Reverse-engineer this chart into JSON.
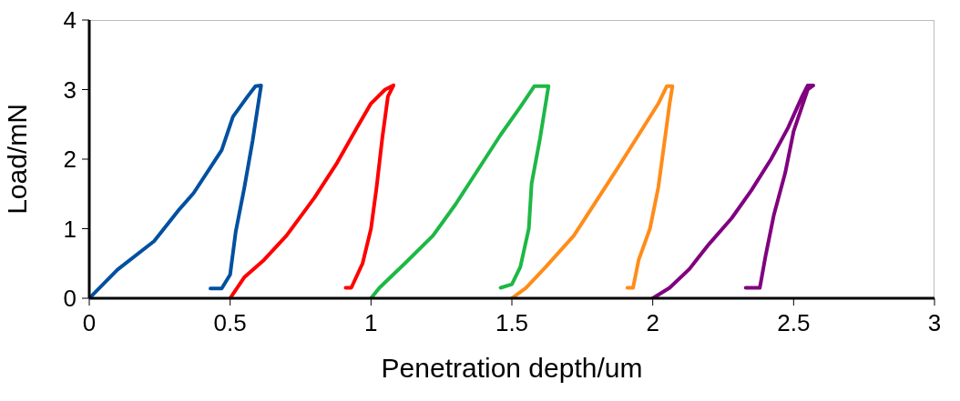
{
  "chart_data": {
    "type": "line",
    "xlabel": "Penetration depth/um",
    "ylabel": "Load/mN",
    "xlim": [
      0,
      3
    ],
    "xticks": [
      0,
      0.5,
      1,
      1.5,
      2,
      2.5,
      3
    ],
    "ylim": [
      0,
      4
    ],
    "yticks": [
      0,
      1,
      2,
      3,
      4
    ],
    "marker": "none",
    "line_style": "solid",
    "series": [
      {
        "color": "#0050a0",
        "x": [
          0,
          0.1,
          0.23,
          0.32,
          0.37,
          0.43,
          0.47,
          0.51,
          0.56,
          0.59,
          0.61,
          0.6,
          0.58,
          0.55,
          0.52,
          0.5,
          0.47,
          0.43
        ],
        "values": [
          0,
          0.41,
          0.82,
          1.28,
          1.51,
          1.88,
          2.13,
          2.61,
          2.89,
          3.05,
          3.06,
          2.8,
          2.27,
          1.58,
          0.96,
          0.34,
          0.14,
          0.14
        ]
      },
      {
        "color": "#ff0000",
        "x": [
          0.5,
          0.55,
          0.62,
          0.7,
          0.8,
          0.88,
          0.95,
          1.0,
          1.05,
          1.08,
          1.06,
          1.04,
          1.02,
          1.0,
          0.97,
          0.93,
          0.91
        ],
        "values": [
          0,
          0.3,
          0.55,
          0.9,
          1.45,
          1.95,
          2.45,
          2.8,
          3.0,
          3.06,
          2.9,
          2.3,
          1.6,
          1.0,
          0.5,
          0.15,
          0.15
        ]
      },
      {
        "color": "#1db845",
        "x": [
          1.0,
          1.03,
          1.12,
          1.22,
          1.3,
          1.38,
          1.46,
          1.53,
          1.58,
          1.63,
          1.62,
          1.6,
          1.57,
          1.56,
          1.53,
          1.5,
          1.46
        ],
        "values": [
          0,
          0.15,
          0.5,
          0.9,
          1.35,
          1.85,
          2.35,
          2.75,
          3.05,
          3.05,
          2.8,
          2.3,
          1.65,
          1.0,
          0.45,
          0.2,
          0.15
        ]
      },
      {
        "color": "#ff8c1a",
        "x": [
          1.5,
          1.55,
          1.62,
          1.72,
          1.8,
          1.88,
          1.95,
          2.02,
          2.05,
          2.07,
          2.06,
          2.04,
          2.02,
          1.99,
          1.95,
          1.93,
          1.91
        ],
        "values": [
          0,
          0.15,
          0.45,
          0.9,
          1.4,
          1.9,
          2.35,
          2.8,
          3.05,
          3.05,
          2.8,
          2.2,
          1.6,
          1.0,
          0.55,
          0.15,
          0.15
        ]
      },
      {
        "color": "#800080",
        "x": [
          2.0,
          2.06,
          2.13,
          2.2,
          2.28,
          2.35,
          2.42,
          2.48,
          2.53,
          2.55,
          2.57,
          2.55,
          2.5,
          2.47,
          2.43,
          2.4,
          2.38,
          2.33
        ],
        "values": [
          0,
          0.15,
          0.42,
          0.78,
          1.15,
          1.55,
          2.0,
          2.45,
          2.9,
          3.06,
          3.06,
          3.0,
          2.4,
          1.8,
          1.2,
          0.6,
          0.15,
          0.15
        ]
      }
    ]
  }
}
